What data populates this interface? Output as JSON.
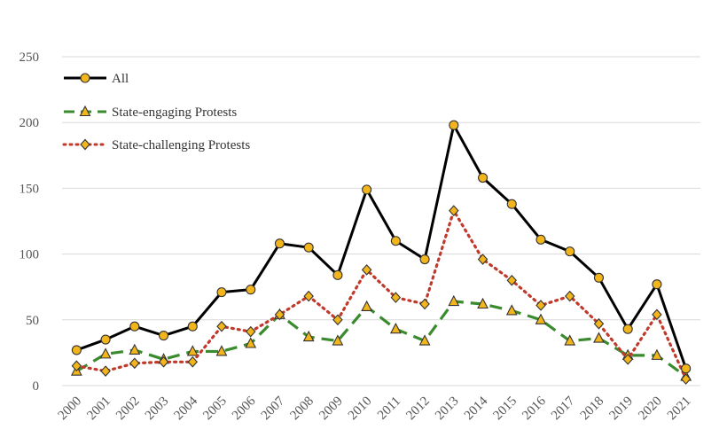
{
  "chart_data": {
    "type": "line",
    "title": "",
    "xlabel": "",
    "ylabel": "",
    "ylim": [
      0,
      250
    ],
    "yticks": [
      "0",
      "50",
      "100",
      "150",
      "200",
      "250"
    ],
    "grid": true,
    "legend_position": "top-left",
    "categories": [
      "2000",
      "2001",
      "2002",
      "2003",
      "2004",
      "2005",
      "2006",
      "2007",
      "2008",
      "2009",
      "2010",
      "2011",
      "2012",
      "2013",
      "2014",
      "2015",
      "2016",
      "2017",
      "2018",
      "2019",
      "2020",
      "2021"
    ],
    "series": [
      {
        "name": "All",
        "style": "solid",
        "marker": "circle",
        "color": "#000000",
        "marker_color": "#f2b51c",
        "values": [
          27,
          35,
          45,
          38,
          45,
          71,
          73,
          108,
          105,
          84,
          149,
          110,
          96,
          198,
          158,
          138,
          111,
          102,
          82,
          43,
          77,
          13
        ]
      },
      {
        "name": "State-engaging Protests",
        "style": "dashed",
        "marker": "triangle",
        "color": "#3a8a2e",
        "marker_color": "#f2b51c",
        "values": [
          11,
          24,
          27,
          20,
          26,
          26,
          32,
          54,
          37,
          34,
          60,
          43,
          34,
          64,
          62,
          57,
          50,
          34,
          36,
          23,
          23,
          7
        ]
      },
      {
        "name": "State-challenging Protests",
        "style": "dotted",
        "marker": "diamond",
        "color": "#c0392b",
        "marker_color": "#f2b51c",
        "values": [
          15,
          11,
          17,
          18,
          18,
          45,
          41,
          54,
          68,
          50,
          88,
          67,
          62,
          133,
          96,
          80,
          61,
          68,
          47,
          20,
          54,
          5
        ]
      }
    ]
  }
}
